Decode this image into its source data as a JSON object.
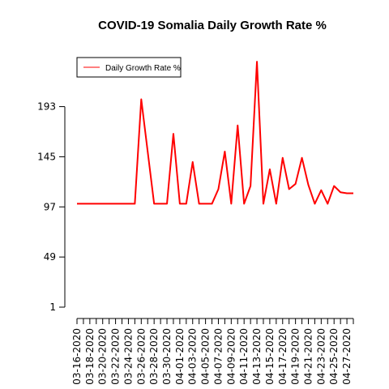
{
  "chart_data": {
    "type": "line",
    "title": "COVID-19 Somalia Daily Growth Rate %",
    "xlabel": "",
    "ylabel": "",
    "x": [
      "03-16-2020",
      "03-17-2020",
      "03-18-2020",
      "03-19-2020",
      "03-20-2020",
      "03-21-2020",
      "03-22-2020",
      "03-23-2020",
      "03-24-2020",
      "03-25-2020",
      "03-26-2020",
      "03-27-2020",
      "03-28-2020",
      "03-29-2020",
      "03-30-2020",
      "03-31-2020",
      "04-01-2020",
      "04-02-2020",
      "04-03-2020",
      "04-04-2020",
      "04-05-2020",
      "04-06-2020",
      "04-07-2020",
      "04-08-2020",
      "04-09-2020",
      "04-10-2020",
      "04-11-2020",
      "04-12-2020",
      "04-13-2020",
      "04-14-2020",
      "04-15-2020",
      "04-16-2020",
      "04-17-2020",
      "04-18-2020",
      "04-19-2020",
      "04-20-2020",
      "04-21-2020",
      "04-22-2020",
      "04-23-2020",
      "04-24-2020",
      "04-25-2020",
      "04-26-2020",
      "04-27-2020",
      "04-28-2020"
    ],
    "x_tick_labels": [
      "03-16-2020",
      "03-18-2020",
      "03-20-2020",
      "03-22-2020",
      "03-24-2020",
      "03-26-2020",
      "03-28-2020",
      "03-30-2020",
      "04-01-2020",
      "04-03-2020",
      "04-05-2020",
      "04-07-2020",
      "04-09-2020",
      "04-11-2020",
      "04-13-2020",
      "04-15-2020",
      "04-17-2020",
      "04-19-2020",
      "04-21-2020",
      "04-23-2020",
      "04-25-2020",
      "04-27-2020"
    ],
    "y_ticks": [
      1,
      49,
      97,
      145,
      193
    ],
    "ylim": [
      1,
      240
    ],
    "series": [
      {
        "name": "Daily Growth Rate %",
        "color": "#ff0000",
        "values": [
          100,
          100,
          100,
          100,
          100,
          100,
          100,
          100,
          100,
          100,
          200,
          150,
          100,
          100,
          100,
          167,
          100,
          100,
          140,
          100,
          100,
          100,
          114,
          150,
          100,
          175,
          100,
          117,
          236,
          100,
          133,
          100,
          144,
          114,
          119,
          144,
          118,
          100,
          113,
          100,
          117,
          111,
          110,
          110
        ]
      }
    ],
    "grid": false,
    "legend_position": "top-left"
  }
}
